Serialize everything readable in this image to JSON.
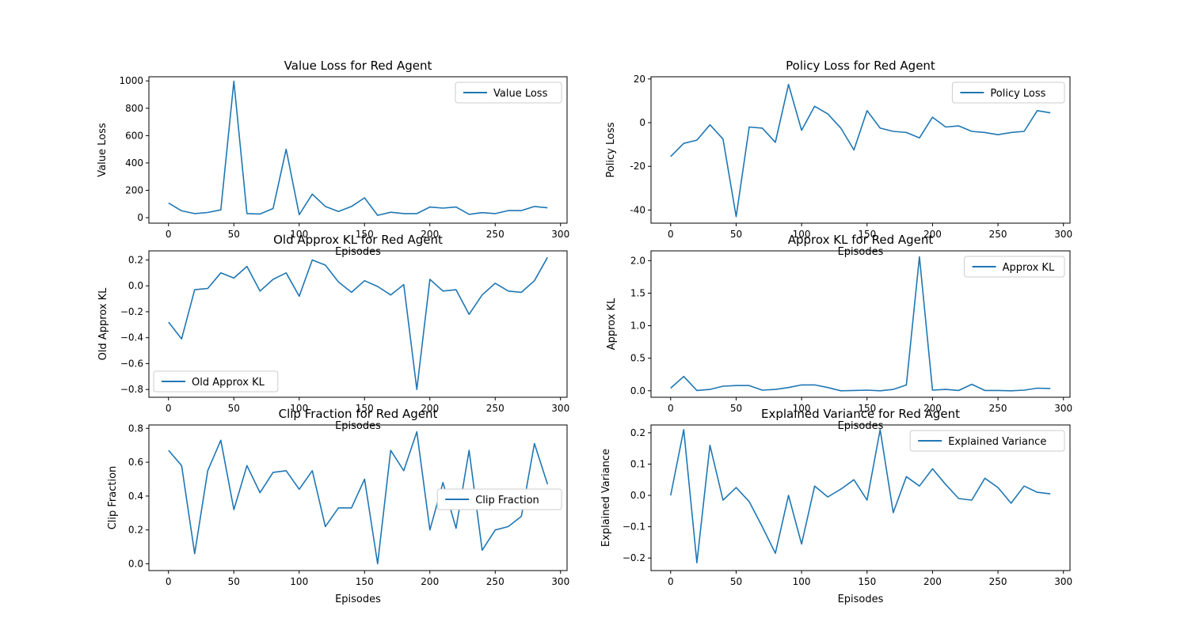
{
  "chart_data": [
    {
      "type": "line",
      "title": "Value Loss for Red Agent",
      "xlabel": "Episodes",
      "ylabel": "Value Loss",
      "xlim": [
        -15,
        305
      ],
      "ylim": [
        -40,
        1030
      ],
      "xticks": [
        0,
        50,
        100,
        150,
        200,
        250,
        300
      ],
      "yticks": [
        0,
        200,
        400,
        600,
        800,
        1000
      ],
      "legend": "upper-right",
      "color": "#1f77b4",
      "x": [
        0,
        10,
        20,
        30,
        40,
        50,
        60,
        70,
        80,
        90,
        100,
        110,
        120,
        130,
        140,
        150,
        160,
        170,
        180,
        190,
        200,
        210,
        220,
        230,
        240,
        250,
        260,
        270,
        280,
        290
      ],
      "series": [
        {
          "name": "Value Loss",
          "values": [
            107,
            50,
            30,
            38,
            57,
            997,
            30,
            27,
            67,
            500,
            22,
            172,
            82,
            45,
            82,
            145,
            17,
            40,
            30,
            30,
            78,
            70,
            78,
            25,
            37,
            30,
            52,
            52,
            82,
            72
          ]
        }
      ]
    },
    {
      "type": "line",
      "title": "Policy Loss for Red Agent",
      "xlabel": "Episodes",
      "ylabel": "Policy Loss",
      "xlim": [
        -15,
        305
      ],
      "ylim": [
        -46,
        21
      ],
      "xticks": [
        0,
        50,
        100,
        150,
        200,
        250,
        300
      ],
      "yticks": [
        -40,
        -20,
        0,
        20
      ],
      "legend": "upper-right",
      "color": "#1f77b4",
      "x": [
        0,
        10,
        20,
        30,
        40,
        50,
        60,
        70,
        80,
        90,
        100,
        110,
        120,
        130,
        140,
        150,
        160,
        170,
        180,
        190,
        200,
        210,
        220,
        230,
        240,
        250,
        260,
        270,
        280,
        290
      ],
      "series": [
        {
          "name": "Policy Loss",
          "values": [
            -15.5,
            -9.5,
            -8,
            -1,
            -7.5,
            -43,
            -2,
            -2.5,
            -9,
            17.5,
            -3.5,
            7.5,
            4,
            -2.5,
            -12.5,
            5.5,
            -2.5,
            -4,
            -4.5,
            -7,
            2.5,
            -2,
            -1.5,
            -4,
            -4.5,
            -5.5,
            -4.5,
            -4,
            5.5,
            4.5
          ]
        }
      ]
    },
    {
      "type": "line",
      "title": "Old Approx KL for Red Agent",
      "xlabel": "Episodes",
      "ylabel": "Old Approx KL",
      "xlim": [
        -15,
        305
      ],
      "ylim": [
        -0.86,
        0.27
      ],
      "xticks": [
        0,
        50,
        100,
        150,
        200,
        250,
        300
      ],
      "yticks": [
        -0.8,
        -0.6,
        -0.4,
        -0.2,
        0.0,
        0.2
      ],
      "ytick_labels": [
        "−0.8",
        "−0.6",
        "−0.4",
        "−0.2",
        "0.0",
        "0.2"
      ],
      "legend": "lower-left",
      "color": "#1f77b4",
      "x": [
        0,
        10,
        20,
        30,
        40,
        50,
        60,
        70,
        80,
        90,
        100,
        110,
        120,
        130,
        140,
        150,
        160,
        170,
        180,
        190,
        200,
        210,
        220,
        230,
        240,
        250,
        260,
        270,
        280,
        290
      ],
      "series": [
        {
          "name": "Old Approx KL",
          "values": [
            -0.28,
            -0.41,
            -0.03,
            -0.02,
            0.1,
            0.06,
            0.15,
            -0.04,
            0.05,
            0.1,
            -0.08,
            0.2,
            0.16,
            0.03,
            -0.05,
            0.04,
            -0.005,
            -0.07,
            0.01,
            -0.8,
            0.05,
            -0.04,
            -0.03,
            -0.22,
            -0.07,
            0.02,
            -0.04,
            -0.05,
            0.04,
            0.22
          ]
        }
      ]
    },
    {
      "type": "line",
      "title": "Approx KL for Red Agent",
      "xlabel": "Episodes",
      "ylabel": "Approx KL",
      "xlim": [
        -15,
        305
      ],
      "ylim": [
        -0.1,
        2.15
      ],
      "xticks": [
        0,
        50,
        100,
        150,
        200,
        250,
        300
      ],
      "yticks": [
        0.0,
        0.5,
        1.0,
        1.5,
        2.0
      ],
      "ytick_labels": [
        "0.0",
        "0.5",
        "1.0",
        "1.5",
        "2.0"
      ],
      "legend": "upper-right",
      "color": "#1f77b4",
      "x": [
        0,
        10,
        20,
        30,
        40,
        50,
        60,
        70,
        80,
        90,
        100,
        110,
        120,
        130,
        140,
        150,
        160,
        170,
        180,
        190,
        200,
        210,
        220,
        230,
        240,
        250,
        260,
        270,
        280,
        290
      ],
      "series": [
        {
          "name": "Approx KL",
          "values": [
            0.04,
            0.22,
            0.005,
            0.02,
            0.07,
            0.08,
            0.08,
            0.01,
            0.02,
            0.05,
            0.09,
            0.09,
            0.05,
            0.0,
            0.005,
            0.01,
            0.0,
            0.02,
            0.09,
            2.06,
            0.01,
            0.02,
            0.005,
            0.1,
            0.005,
            0.005,
            0.0,
            0.01,
            0.04,
            0.035
          ]
        }
      ]
    },
    {
      "type": "line",
      "title": "Clip Fraction for Red Agent",
      "xlabel": "Episodes",
      "ylabel": "Clip Fraction",
      "xlim": [
        -15,
        305
      ],
      "ylim": [
        -0.04,
        0.82
      ],
      "xticks": [
        0,
        50,
        100,
        150,
        200,
        250,
        300
      ],
      "yticks": [
        0.0,
        0.2,
        0.4,
        0.6,
        0.8
      ],
      "ytick_labels": [
        "0.0",
        "0.2",
        "0.4",
        "0.6",
        "0.8"
      ],
      "legend": "center-right",
      "color": "#1f77b4",
      "x": [
        0,
        10,
        20,
        30,
        40,
        50,
        60,
        70,
        80,
        90,
        100,
        110,
        120,
        130,
        140,
        150,
        160,
        170,
        180,
        190,
        200,
        210,
        220,
        230,
        240,
        250,
        260,
        270,
        280,
        290
      ],
      "series": [
        {
          "name": "Clip Fraction",
          "values": [
            0.67,
            0.58,
            0.06,
            0.55,
            0.73,
            0.32,
            0.58,
            0.42,
            0.54,
            0.55,
            0.44,
            0.55,
            0.22,
            0.33,
            0.33,
            0.5,
            0.0,
            0.67,
            0.55,
            0.78,
            0.2,
            0.48,
            0.21,
            0.67,
            0.08,
            0.2,
            0.22,
            0.28,
            0.71,
            0.47
          ]
        }
      ]
    },
    {
      "type": "line",
      "title": "Explained Variance for Red Agent",
      "xlabel": "Episodes",
      "ylabel": "Explained Variance",
      "xlim": [
        -15,
        305
      ],
      "ylim": [
        -0.24,
        0.225
      ],
      "xticks": [
        0,
        50,
        100,
        150,
        200,
        250,
        300
      ],
      "yticks": [
        -0.2,
        -0.1,
        0.0,
        0.1,
        0.2
      ],
      "ytick_labels": [
        "−0.2",
        "−0.1",
        "0.0",
        "0.1",
        "0.2"
      ],
      "legend": "upper-right",
      "color": "#1f77b4",
      "x": [
        0,
        10,
        20,
        30,
        40,
        50,
        60,
        70,
        80,
        90,
        100,
        110,
        120,
        130,
        140,
        150,
        160,
        170,
        180,
        190,
        200,
        210,
        220,
        230,
        240,
        250,
        260,
        270,
        280,
        290
      ],
      "series": [
        {
          "name": "Explained Variance",
          "values": [
            0.0,
            0.21,
            -0.215,
            0.16,
            -0.015,
            0.025,
            -0.02,
            -0.1,
            -0.185,
            0.0,
            -0.155,
            0.03,
            -0.005,
            0.02,
            0.05,
            -0.015,
            0.21,
            -0.055,
            0.06,
            0.03,
            0.085,
            0.035,
            -0.01,
            -0.015,
            0.055,
            0.025,
            -0.025,
            0.03,
            0.01,
            0.005
          ]
        }
      ]
    }
  ]
}
